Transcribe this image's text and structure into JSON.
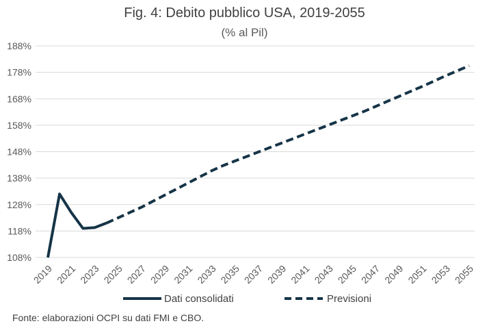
{
  "chart_data": {
    "type": "line",
    "title": "Fig. 4: Debito pubblico USA, 2019-2055",
    "subtitle": "(% al Pil)",
    "xlabel": "",
    "ylabel": "",
    "xlim": [
      2019,
      2055
    ],
    "ylim": [
      108,
      188
    ],
    "x_tick_labels": [
      "2019",
      "2021",
      "2023",
      "2025",
      "2027",
      "2029",
      "2031",
      "2033",
      "2035",
      "2037",
      "2039",
      "2041",
      "2043",
      "2045",
      "2047",
      "2049",
      "2051",
      "2053",
      "2055"
    ],
    "y_tick_labels": [
      "188%",
      "178%",
      "168%",
      "158%",
      "148%",
      "138%",
      "128%",
      "118%",
      "108%"
    ],
    "y_tick_values": [
      188,
      178,
      168,
      158,
      148,
      138,
      128,
      118,
      108
    ],
    "grid": true,
    "legend_position": "bottom",
    "series": [
      {
        "name": "Dati consolidati",
        "style": "solid",
        "color": "#163447",
        "x": [
          2019,
          2020,
          2021,
          2022,
          2023,
          2024
        ],
        "y": [
          108,
          132,
          125,
          119,
          119.3,
          121
        ]
      },
      {
        "name": "Previsioni",
        "style": "dashed",
        "color": "#163447",
        "x": [
          2024,
          2025,
          2026,
          2027,
          2028,
          2029,
          2030,
          2031,
          2032,
          2033,
          2034,
          2035,
          2036,
          2037,
          2038,
          2039,
          2040,
          2041,
          2042,
          2043,
          2044,
          2045,
          2046,
          2047,
          2048,
          2049,
          2050,
          2051,
          2052,
          2053,
          2054,
          2055
        ],
        "y": [
          121,
          123,
          125,
          127,
          129.3,
          131.6,
          133.9,
          136.2,
          138.5,
          140.8,
          142.8,
          144.5,
          146.2,
          147.9,
          149.6,
          151.3,
          153,
          154.7,
          156.4,
          158.1,
          159.8,
          161.5,
          163.2,
          165.1,
          167,
          168.9,
          170.8,
          172.7,
          174.7,
          176.7,
          178.6,
          180.5
        ]
      }
    ],
    "source": "Fonte: elaborazioni OCPI su dati FMI e CBO."
  }
}
